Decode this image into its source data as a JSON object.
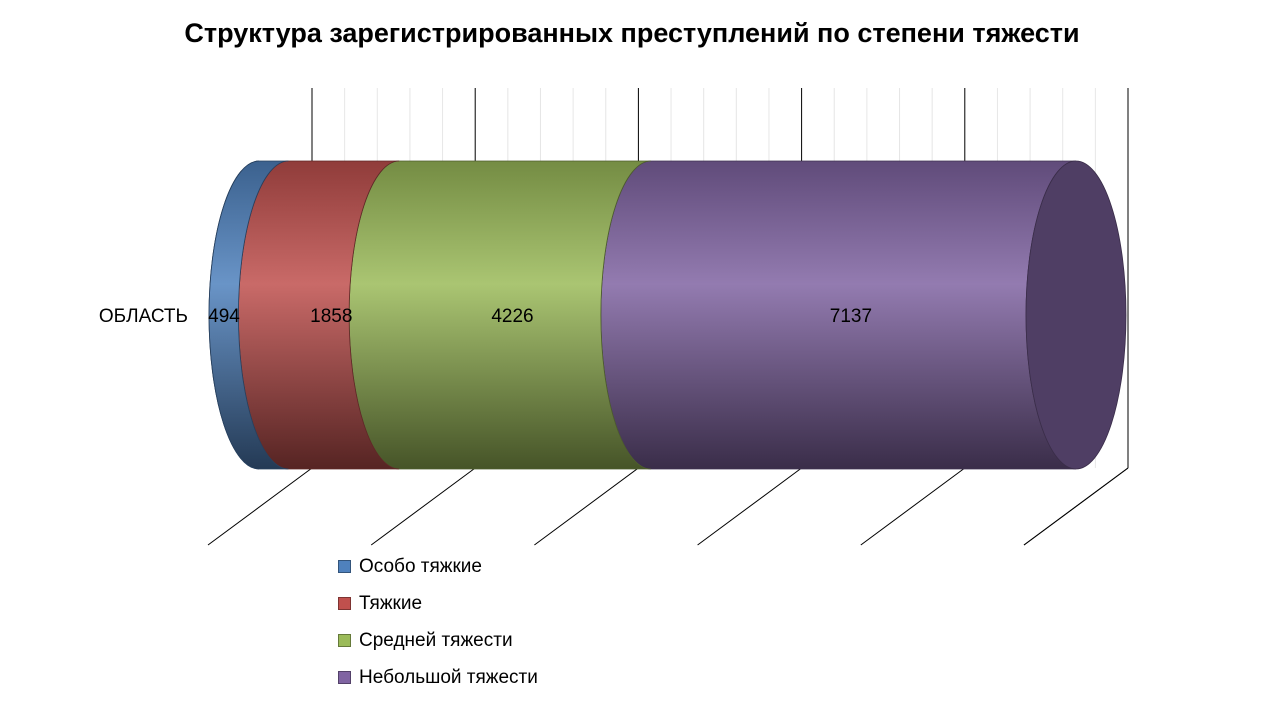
{
  "chart_data": {
    "type": "bar",
    "orientation": "horizontal",
    "stacked": true,
    "style": "3d-cylinder",
    "title": "Структура зарегистрированных преступлений по степени тяжести",
    "categories": [
      "ОБЛАСТЬ"
    ],
    "series": [
      {
        "name": "Особо тяжкие",
        "values": [
          494
        ],
        "color": "#4f81bd"
      },
      {
        "name": "Тяжкие",
        "values": [
          1858
        ],
        "color": "#c0504d"
      },
      {
        "name": "Средней тяжести",
        "values": [
          4226
        ],
        "color": "#9bbb59"
      },
      {
        "name": "Небольшой тяжести",
        "values": [
          7137
        ],
        "color": "#8064a2"
      }
    ],
    "data_labels": true,
    "grid": true,
    "legend_position": "bottom-left"
  }
}
